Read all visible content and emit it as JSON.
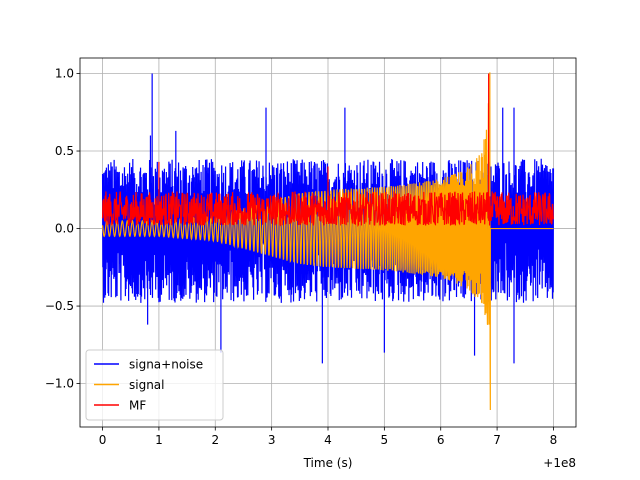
{
  "chart_data": {
    "type": "line",
    "title": "",
    "xlabel": "Time (s)",
    "ylabel": "",
    "x_offset_label": "+1e8",
    "xlim": [
      -0.4,
      8.4
    ],
    "ylim": [
      -1.28,
      1.1
    ],
    "xticks": [
      0,
      1,
      2,
      3,
      4,
      5,
      6,
      7,
      8
    ],
    "xtick_labels": [
      "0",
      "1",
      "2",
      "3",
      "4",
      "5",
      "6",
      "7",
      "8"
    ],
    "yticks": [
      -1.0,
      -0.5,
      0.0,
      0.5,
      1.0
    ],
    "ytick_labels": [
      "−1.0",
      "−0.5",
      "0.0",
      "0.5",
      "1.0"
    ],
    "grid": true,
    "legend_position": "lower-left",
    "series": [
      {
        "name": "signa+noise",
        "color": "#0000ff",
        "style": "noise",
        "x_range": [
          0,
          8
        ],
        "upper_envelope": [
          [
            0,
            0.45
          ],
          [
            8,
            0.45
          ]
        ],
        "lower_envelope": [
          [
            0,
            -0.48
          ],
          [
            8,
            -0.48
          ]
        ],
        "peaks": [
          [
            0.88,
            1.0
          ],
          [
            0.85,
            0.6
          ],
          [
            1.3,
            0.63
          ],
          [
            2.9,
            0.78
          ],
          [
            4.3,
            0.78
          ],
          [
            7.3,
            0.78
          ],
          [
            7.1,
            0.78
          ]
        ],
        "troughs": [
          [
            3.9,
            -0.87
          ],
          [
            7.3,
            -0.87
          ],
          [
            2.1,
            -0.8
          ],
          [
            6.6,
            -0.82
          ],
          [
            0.8,
            -0.62
          ],
          [
            5.0,
            -0.8
          ]
        ]
      },
      {
        "name": "signal",
        "color": "#ffa500",
        "style": "chirp",
        "x_range": [
          0,
          6.88
        ],
        "envelope": [
          [
            0,
            0.05
          ],
          [
            1,
            0.05
          ],
          [
            2,
            0.08
          ],
          [
            2.5,
            0.13
          ],
          [
            3,
            0.18
          ],
          [
            3.5,
            0.23
          ],
          [
            4,
            0.25
          ],
          [
            4.5,
            0.26
          ],
          [
            5,
            0.27
          ],
          [
            5.5,
            0.29
          ],
          [
            6,
            0.32
          ],
          [
            6.3,
            0.36
          ],
          [
            6.5,
            0.4
          ],
          [
            6.7,
            0.48
          ],
          [
            6.82,
            0.65
          ],
          [
            6.86,
            0.9
          ],
          [
            6.88,
            1.17
          ]
        ]
      },
      {
        "name": "MF",
        "color": "#ff0000",
        "style": "positive-noise",
        "x_range": [
          0,
          8
        ],
        "typical_max": 0.22,
        "peaks": [
          [
            1.0,
            0.43
          ],
          [
            4.0,
            0.4
          ],
          [
            6.85,
            1.0
          ]
        ]
      }
    ]
  }
}
